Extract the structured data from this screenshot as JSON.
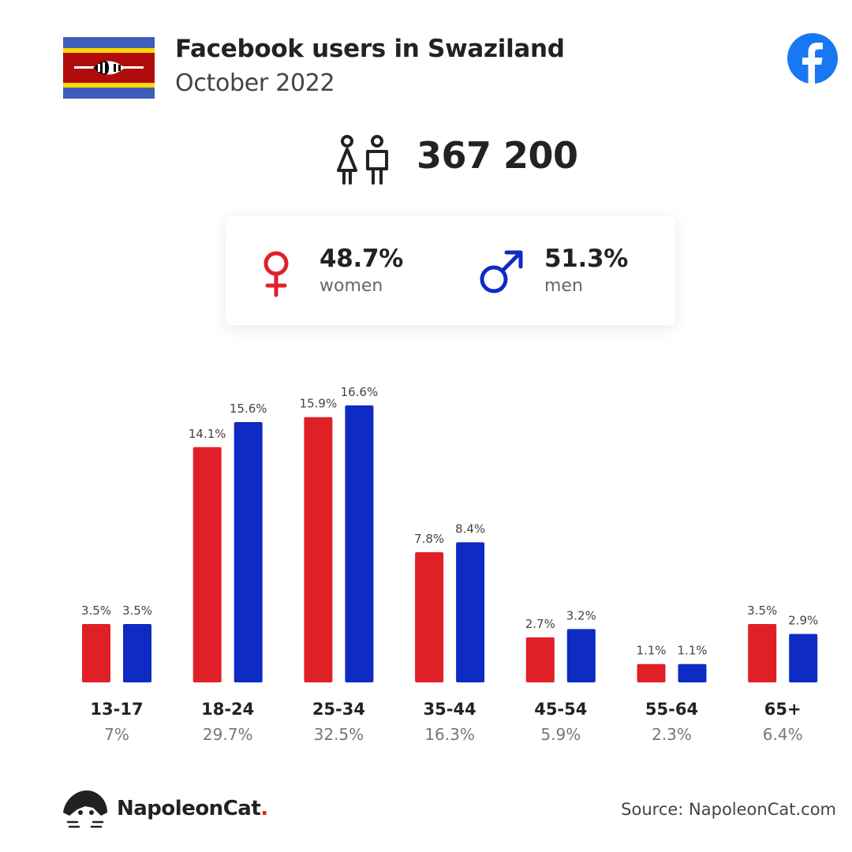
{
  "header": {
    "title": "Facebook users in Swaziland",
    "subtitle": "October 2022"
  },
  "icons": {
    "flag": "swaziland-flag",
    "social": "facebook-icon",
    "users": "users-icon",
    "female": "female-symbol-icon",
    "male": "male-symbol-icon",
    "brand_logo": "napoleoncat-logo-icon"
  },
  "summary": {
    "total_users": "367 200",
    "women": {
      "percent": "48.7%",
      "label": "women"
    },
    "men": {
      "percent": "51.3%",
      "label": "men"
    }
  },
  "colors": {
    "women": "#e02027",
    "men": "#0e2bc4",
    "facebook": "#1877f2"
  },
  "chart_data": {
    "type": "bar",
    "categories": [
      "13-17",
      "18-24",
      "25-34",
      "35-44",
      "45-54",
      "55-64",
      "65+"
    ],
    "category_totals": [
      "7%",
      "29.7%",
      "32.5%",
      "16.3%",
      "5.9%",
      "2.3%",
      "6.4%"
    ],
    "series": [
      {
        "name": "women",
        "values": [
          3.5,
          14.1,
          15.9,
          7.8,
          2.7,
          1.1,
          3.5
        ],
        "labels": [
          "3.5%",
          "14.1%",
          "15.9%",
          "7.8%",
          "2.7%",
          "1.1%",
          "3.5%"
        ]
      },
      {
        "name": "men",
        "values": [
          3.5,
          15.6,
          16.6,
          8.4,
          3.2,
          1.1,
          2.9
        ],
        "labels": [
          "3.5%",
          "15.6%",
          "16.6%",
          "8.4%",
          "3.2%",
          "1.1%",
          "2.9%"
        ]
      }
    ],
    "unit": "%",
    "grid": false
  },
  "footer": {
    "brand": "NapoleonCat",
    "brand_dot": ".",
    "source": "Source: NapoleonCat.com"
  }
}
